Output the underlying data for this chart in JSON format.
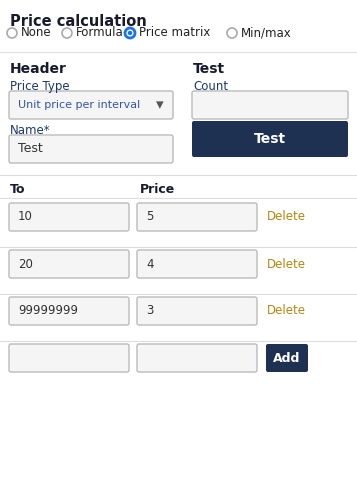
{
  "title": "Price calculation",
  "radio_options": [
    "None",
    "Formula",
    "Price matrix",
    "Min/max"
  ],
  "radio_selected": 2,
  "header_label": "Header",
  "test_label": "Test",
  "price_type_label": "Price Type",
  "price_type_value": "Unit price per interval",
  "name_label": "Name*",
  "name_value": "Test",
  "count_label": "Count",
  "test_button_label": "Test",
  "to_label": "To",
  "price_label": "Price",
  "rows": [
    {
      "to": "10",
      "price": "5"
    },
    {
      "to": "20",
      "price": "4"
    },
    {
      "to": "99999999",
      "price": "3"
    },
    {
      "to": "",
      "price": ""
    }
  ],
  "delete_label": "Delete",
  "add_button_label": "Add",
  "bg_color": "#ffffff",
  "button_color": "#1e3153",
  "button_text_color": "#ffffff",
  "input_border_color": "#cccccc",
  "input_bg": "#f5f5f5",
  "radio_active_fill": "#1a73e8",
  "radio_inactive_border": "#aaaaaa",
  "delete_color": "#b8860b",
  "text_color": "#1a1a2e",
  "separator_color": "#dddddd",
  "dropdown_bg": "#f5f5f5",
  "price_type_text_color": "#3355aa",
  "name_text_color": "#333333",
  "header_color": "#1a1a2e",
  "label_blue": "#1a3a6b"
}
